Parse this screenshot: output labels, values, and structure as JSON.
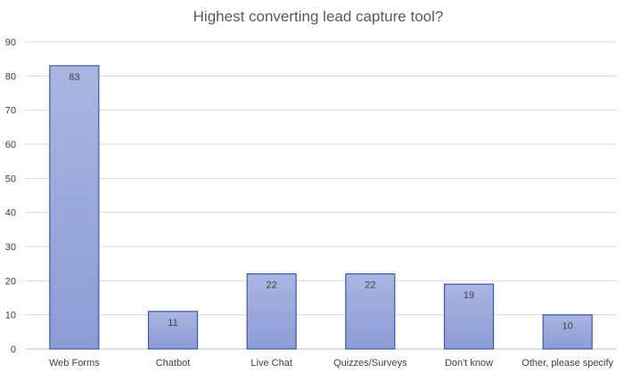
{
  "chart_data": {
    "type": "bar",
    "title": "Highest converting lead capture tool?",
    "xlabel": "",
    "ylabel": "",
    "categories": [
      "Web Forms",
      "Chatbot",
      "Live Chat",
      "Quizzes/Surveys",
      "Don't know",
      "Other, please specify"
    ],
    "values": [
      83,
      11,
      22,
      22,
      19,
      10
    ],
    "data_labels": [
      "83",
      "11",
      "22",
      "22",
      "19",
      "10"
    ],
    "ylim": [
      0,
      90
    ],
    "yticks": [
      0,
      10,
      20,
      30,
      40,
      50,
      60,
      70,
      80,
      90
    ],
    "grid": true,
    "legend": "none",
    "colors": {
      "bar_top": "#aab5e0",
      "bar_bottom": "#8d9cd6",
      "bar_border": "#3a5aa8",
      "grid": "#d9d9d9",
      "text": "#404040",
      "title": "#595959"
    }
  }
}
